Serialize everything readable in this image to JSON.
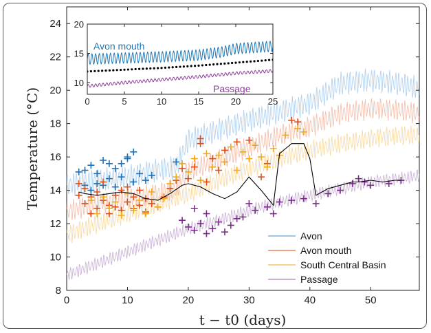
{
  "chart_data": [
    {
      "type": "line",
      "title": "",
      "xlabel": "t − t0 (days)",
      "ylabel": "Temperature (°C)",
      "xlim": [
        0,
        58
      ],
      "ylim": [
        8,
        25
      ],
      "xticks": [
        "0",
        "10",
        "20",
        "30",
        "40",
        "50"
      ],
      "yticks": [
        "8",
        "10",
        "12",
        "14",
        "16",
        "18",
        "20",
        "22",
        "24"
      ],
      "grid": false,
      "legend_position": "bottom-right",
      "series": [
        {
          "name": "Avon",
          "color": "#b4d3ef",
          "x": [
            0,
            5,
            10,
            15,
            18,
            20,
            25,
            30,
            35,
            40,
            45,
            50,
            55,
            58
          ],
          "y": [
            14.3,
            14.6,
            14.8,
            15.2,
            15.4,
            17.0,
            17.6,
            18.2,
            18.7,
            19.2,
            20.4,
            20.6,
            20.4,
            20.1
          ],
          "amplitude": 0.55
        },
        {
          "name": "Avon mouth",
          "color": "#f3c2b0",
          "x": [
            0,
            5,
            10,
            15,
            18,
            20,
            25,
            30,
            35,
            40,
            45,
            50,
            55,
            58
          ],
          "y": [
            12.7,
            13.2,
            13.5,
            13.8,
            14.1,
            15.2,
            15.8,
            16.6,
            17.3,
            17.8,
            18.6,
            18.9,
            18.8,
            18.6
          ],
          "amplitude": 0.5
        },
        {
          "name": "South Central Basin",
          "color": "#f8dca9",
          "x": [
            0,
            5,
            10,
            15,
            20,
            25,
            30,
            35,
            40,
            45,
            50,
            55,
            58
          ],
          "y": [
            11.3,
            12.0,
            12.6,
            13.2,
            13.8,
            14.6,
            15.3,
            15.9,
            16.4,
            16.8,
            17.1,
            17.3,
            17.3
          ],
          "amplitude": 0.45
        },
        {
          "name": "Passage",
          "color": "#cdb6d8",
          "x": [
            0,
            5,
            10,
            15,
            20,
            25,
            30,
            35,
            40,
            45,
            50,
            55,
            58
          ],
          "y": [
            8.9,
            9.6,
            10.3,
            11.0,
            11.7,
            12.2,
            12.8,
            13.3,
            13.7,
            14.1,
            14.5,
            14.7,
            14.9
          ],
          "amplitude": 0.3
        },
        {
          "name": "",
          "color": "#000000",
          "x": [
            2,
            3,
            5,
            7,
            9,
            11,
            13,
            15,
            17,
            19,
            20,
            22,
            24,
            26,
            28,
            30,
            32,
            34,
            35,
            36,
            37,
            38,
            39,
            40,
            41,
            42,
            43,
            45,
            47,
            48,
            50,
            52,
            54,
            55
          ],
          "y": [
            13.9,
            13.8,
            13.7,
            13.8,
            13.9,
            13.8,
            13.5,
            13.4,
            13.8,
            14.3,
            14.4,
            14.2,
            13.8,
            13.5,
            13.9,
            14.8,
            14.0,
            13.1,
            16.2,
            16.5,
            16.8,
            16.8,
            16.8,
            15.9,
            13.7,
            13.9,
            14.1,
            14.3,
            14.5,
            14.5,
            14.6,
            14.5,
            14.6,
            14.6
          ]
        }
      ],
      "scatter": [
        {
          "color": "#1f6fb5",
          "points": [
            [
              2,
              15.1
            ],
            [
              3,
              14.3
            ],
            [
              4,
              15.5
            ],
            [
              5,
              15.0
            ],
            [
              5,
              14.4
            ],
            [
              6,
              15.8
            ],
            [
              7,
              14.7
            ],
            [
              8,
              15.3
            ],
            [
              8,
              14.2
            ],
            [
              9,
              14.8
            ],
            [
              10,
              16.0
            ],
            [
              10,
              15.9
            ],
            [
              11,
              16.3
            ],
            [
              11,
              14.5
            ],
            [
              12,
              15.0
            ],
            [
              13,
              14.6
            ],
            [
              4,
              14.0
            ],
            [
              6,
              14.3
            ],
            [
              9,
              15.6
            ],
            [
              14,
              14.9
            ],
            [
              18,
              15.7
            ],
            [
              3,
              15.2
            ],
            [
              7,
              15.6
            ]
          ]
        },
        {
          "color": "#d94f1e",
          "points": [
            [
              2,
              14.4
            ],
            [
              2,
              13.7
            ],
            [
              3,
              13.2
            ],
            [
              3,
              14.1
            ],
            [
              4,
              12.6
            ],
            [
              4,
              13.6
            ],
            [
              5,
              13.9
            ],
            [
              5,
              12.9
            ],
            [
              6,
              13.4
            ],
            [
              6,
              14.5
            ],
            [
              7,
              13.1
            ],
            [
              7,
              12.6
            ],
            [
              8,
              13.7
            ],
            [
              8,
              13.0
            ],
            [
              9,
              14.0
            ],
            [
              9,
              12.8
            ],
            [
              10,
              13.3
            ],
            [
              10,
              14.2
            ],
            [
              11,
              12.9
            ],
            [
              11,
              13.6
            ],
            [
              12,
              13.1
            ],
            [
              12,
              14.0
            ],
            [
              13,
              12.7
            ],
            [
              13,
              13.5
            ],
            [
              14,
              13.2
            ],
            [
              15,
              13.0
            ],
            [
              16,
              13.6
            ],
            [
              17,
              14.1
            ],
            [
              18,
              14.6
            ],
            [
              19,
              15.3
            ],
            [
              20,
              14.7
            ],
            [
              21,
              15.4
            ],
            [
              22,
              16.8
            ],
            [
              22,
              17.1
            ],
            [
              23,
              14.5
            ],
            [
              24,
              15.9
            ],
            [
              25,
              15.2
            ],
            [
              26,
              16.4
            ],
            [
              28,
              16.9
            ],
            [
              30,
              17.0
            ],
            [
              32,
              14.8
            ],
            [
              33,
              15.6
            ],
            [
              37,
              18.2
            ],
            [
              38,
              18.1
            ]
          ]
        },
        {
          "color": "#f0a81c",
          "points": [
            [
              4,
              13.4
            ],
            [
              5,
              12.6
            ],
            [
              6,
              13.6
            ],
            [
              7,
              12.9
            ],
            [
              8,
              13.3
            ],
            [
              9,
              12.5
            ],
            [
              10,
              13.8
            ],
            [
              11,
              12.8
            ],
            [
              12,
              13.4
            ],
            [
              13,
              12.6
            ],
            [
              14,
              13.9
            ],
            [
              15,
              13.0
            ],
            [
              16,
              13.5
            ],
            [
              17,
              14.4
            ],
            [
              18,
              14.8
            ],
            [
              19,
              15.6
            ],
            [
              20,
              15.1
            ],
            [
              21,
              15.9
            ],
            [
              22,
              14.6
            ],
            [
              23,
              16.2
            ],
            [
              24,
              15.4
            ],
            [
              25,
              16.1
            ],
            [
              26,
              15.7
            ],
            [
              27,
              16.6
            ],
            [
              28,
              15.2
            ],
            [
              29,
              16.3
            ],
            [
              30,
              15.9
            ],
            [
              31,
              16.7
            ],
            [
              32,
              16.0
            ],
            [
              33,
              15.4
            ],
            [
              34,
              16.5
            ],
            [
              35,
              16.1
            ],
            [
              36,
              17.3
            ],
            [
              38,
              17.7
            ],
            [
              39,
              17.5
            ]
          ]
        },
        {
          "color": "#7b2c8a",
          "points": [
            [
              19,
              12.2
            ],
            [
              20,
              11.8
            ],
            [
              21,
              11.6
            ],
            [
              22,
              12.0
            ],
            [
              23,
              11.4
            ],
            [
              24,
              11.7
            ],
            [
              25,
              12.1
            ],
            [
              26,
              11.5
            ],
            [
              27,
              11.9
            ],
            [
              28,
              12.3
            ],
            [
              29,
              12.4
            ],
            [
              30,
              13.2
            ],
            [
              31,
              12.8
            ],
            [
              33,
              13.0
            ],
            [
              34,
              12.6
            ],
            [
              35,
              13.3
            ],
            [
              37,
              13.4
            ],
            [
              39,
              13.5
            ],
            [
              41,
              13.2
            ],
            [
              43,
              13.8
            ],
            [
              45,
              14.0
            ],
            [
              47,
              14.4
            ],
            [
              48,
              14.7
            ],
            [
              49,
              14.5
            ],
            [
              50,
              14.3
            ],
            [
              53,
              14.4
            ],
            [
              55,
              14.6
            ],
            [
              21,
              12.9
            ],
            [
              23,
              12.6
            ]
          ]
        }
      ]
    },
    {
      "type": "line",
      "title": "",
      "xlim": [
        0,
        25
      ],
      "ylim": [
        8,
        20
      ],
      "xticks": [
        "0",
        "5",
        "10",
        "15",
        "20",
        "25"
      ],
      "yticks": [
        "10",
        "15",
        "20"
      ],
      "series": [
        {
          "name": "Avon mouth",
          "color": "#1f77b4",
          "x": [
            0,
            5,
            10,
            15,
            18,
            20,
            25
          ],
          "y": [
            14.0,
            14.2,
            14.4,
            14.7,
            15.2,
            15.8,
            16.2
          ],
          "amplitude": 0.9
        },
        {
          "name": "Passage",
          "color": "#8e3b9c",
          "x": [
            0,
            5,
            10,
            15,
            20,
            25
          ],
          "y": [
            9.4,
            10.0,
            10.5,
            11.0,
            11.6,
            12.0
          ],
          "amplitude": 0.25
        },
        {
          "name": "",
          "color": "#000000",
          "x": [
            0,
            5,
            10,
            15,
            20,
            25
          ],
          "y": [
            11.9,
            12.2,
            12.5,
            12.9,
            13.4,
            13.9
          ]
        }
      ]
    }
  ]
}
